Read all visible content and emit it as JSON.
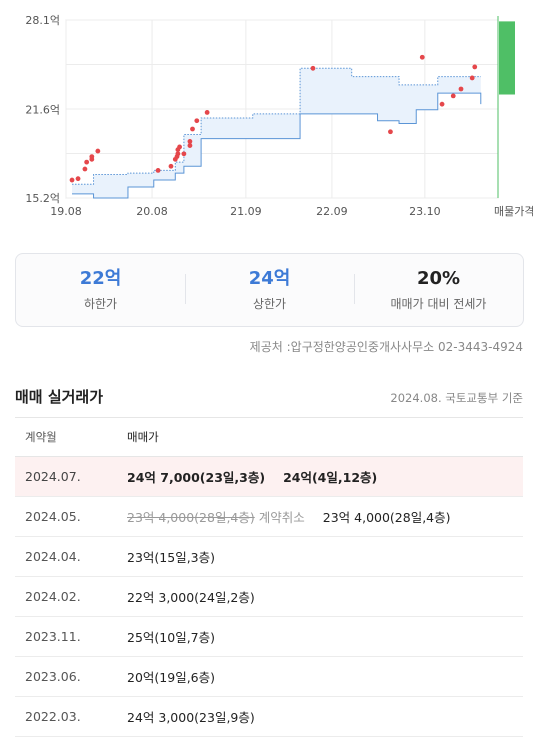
{
  "chart_data": {
    "type": "scatter",
    "y_ticks": [
      "28.1억",
      "21.6억",
      "15.2억"
    ],
    "y_tick_values": [
      28.1,
      21.6,
      15.2
    ],
    "ylim": [
      15.2,
      28.1
    ],
    "x_ticks": [
      "19.08",
      "20.08",
      "21.09",
      "22.09",
      "23.10",
      "매물가격"
    ],
    "x_tick_values": [
      2019.58,
      2020.58,
      2021.67,
      2022.67,
      2023.75
    ],
    "xlim": [
      2019.58,
      2024.6
    ],
    "band_color": "#e9f2fc",
    "band_edge_color": "#5b95d6",
    "band": [
      {
        "x": 2019.65,
        "low": 15.5,
        "high": 16.2
      },
      {
        "x": 2019.9,
        "low": 15.2,
        "high": 16.9
      },
      {
        "x": 2020.3,
        "low": 16.0,
        "high": 17.0
      },
      {
        "x": 2020.6,
        "low": 16.5,
        "high": 17.2
      },
      {
        "x": 2020.85,
        "low": 17.0,
        "high": 17.8
      },
      {
        "x": 2020.95,
        "low": 17.5,
        "high": 19.8
      },
      {
        "x": 2021.15,
        "low": 19.5,
        "high": 21.0
      },
      {
        "x": 2021.5,
        "low": 19.5,
        "high": 21.0
      },
      {
        "x": 2021.75,
        "low": 19.5,
        "high": 21.3
      },
      {
        "x": 2022.05,
        "low": 19.5,
        "high": 21.3
      },
      {
        "x": 2022.3,
        "low": 21.3,
        "high": 24.6
      },
      {
        "x": 2022.9,
        "low": 21.3,
        "high": 24.0
      },
      {
        "x": 2023.2,
        "low": 20.8,
        "high": 24.0
      },
      {
        "x": 2023.45,
        "low": 20.6,
        "high": 23.4
      },
      {
        "x": 2023.65,
        "low": 21.6,
        "high": 23.4
      },
      {
        "x": 2023.9,
        "low": 22.8,
        "high": 24.0
      },
      {
        "x": 2024.4,
        "low": 22.0,
        "high": 24.0
      }
    ],
    "points_color": "#e5474b",
    "points": [
      {
        "x": 2019.65,
        "y": 16.5
      },
      {
        "x": 2019.72,
        "y": 16.6
      },
      {
        "x": 2019.8,
        "y": 17.3
      },
      {
        "x": 2019.82,
        "y": 17.8
      },
      {
        "x": 2019.88,
        "y": 18.0
      },
      {
        "x": 2019.88,
        "y": 18.2
      },
      {
        "x": 2019.95,
        "y": 18.6
      },
      {
        "x": 2020.65,
        "y": 17.2
      },
      {
        "x": 2020.8,
        "y": 17.5
      },
      {
        "x": 2020.85,
        "y": 18.0
      },
      {
        "x": 2020.87,
        "y": 18.2
      },
      {
        "x": 2020.88,
        "y": 18.4
      },
      {
        "x": 2020.88,
        "y": 18.7
      },
      {
        "x": 2020.9,
        "y": 18.9
      },
      {
        "x": 2020.95,
        "y": 18.4
      },
      {
        "x": 2021.02,
        "y": 19.0
      },
      {
        "x": 2021.02,
        "y": 19.3
      },
      {
        "x": 2021.05,
        "y": 20.2
      },
      {
        "x": 2021.1,
        "y": 20.8
      },
      {
        "x": 2021.22,
        "y": 21.4
      },
      {
        "x": 2022.45,
        "y": 24.6
      },
      {
        "x": 2023.35,
        "y": 20.0
      },
      {
        "x": 2023.72,
        "y": 25.4
      },
      {
        "x": 2023.95,
        "y": 22.0
      },
      {
        "x": 2024.08,
        "y": 22.6
      },
      {
        "x": 2024.17,
        "y": 23.1
      },
      {
        "x": 2024.3,
        "y": 23.9
      },
      {
        "x": 2024.33,
        "y": 24.7
      }
    ],
    "listing_range": {
      "low": 22.7,
      "high": 28.0,
      "color": "#4fbf66"
    }
  },
  "summary": {
    "low_value": "22억",
    "low_label": "하한가",
    "high_value": "24억",
    "high_label": "상한가",
    "ratio_value": "20%",
    "ratio_label": "매매가 대비 전세가"
  },
  "source": "제공처 :압구정한양공인중개사사무소 02-3443-4924",
  "trades": {
    "title": "매매 실거래가",
    "note": "2024.08. 국토교통부 기준",
    "col_month": "계약월",
    "col_price": "매매가",
    "rows": [
      {
        "month": "2024.07.",
        "a": "24억 7,000(23일,3층)",
        "b": "24억(4일,12층)"
      },
      {
        "month": "2024.05.",
        "struck": "23억 4,000(28일,4층)",
        "cancel": "계약취소",
        "b": "23억 4,000(28일,4층)"
      },
      {
        "month": "2024.04.",
        "a": "23억(15일,3층)"
      },
      {
        "month": "2024.02.",
        "a": "22억 3,000(24일,2층)"
      },
      {
        "month": "2023.11.",
        "a": "25억(10일,7층)"
      },
      {
        "month": "2023.06.",
        "a": "20억(19일,6층)"
      },
      {
        "month": "2022.03.",
        "a": "24억 3,000(23일,9층)"
      }
    ]
  }
}
